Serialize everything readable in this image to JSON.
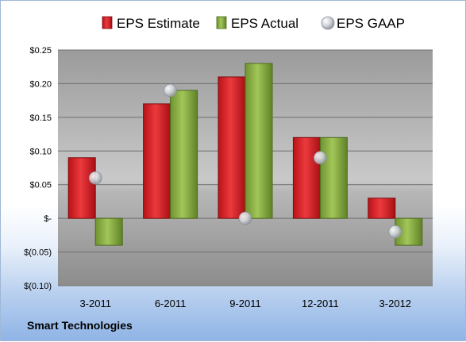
{
  "chart_data": {
    "type": "bar",
    "categories": [
      "3-2011",
      "6-2011",
      "9-2011",
      "12-2011",
      "3-2012"
    ],
    "series": [
      {
        "name": "EPS Estimate",
        "kind": "bar",
        "color": "#e0262b",
        "values": [
          0.09,
          0.17,
          0.21,
          0.12,
          0.03
        ]
      },
      {
        "name": "EPS Actual",
        "kind": "bar",
        "color": "#8db543",
        "values": [
          -0.04,
          0.19,
          0.23,
          0.12,
          -0.04
        ]
      },
      {
        "name": "EPS GAAP",
        "kind": "scatter",
        "color": "#c8ccd2",
        "values": [
          0.06,
          0.19,
          0.0,
          0.09,
          -0.02
        ]
      }
    ],
    "y_ticks": [
      {
        "value": 0.25,
        "label": "$0.25"
      },
      {
        "value": 0.2,
        "label": "$0.20"
      },
      {
        "value": 0.15,
        "label": "$0.15"
      },
      {
        "value": 0.1,
        "label": "$0.10"
      },
      {
        "value": 0.05,
        "label": "$0.05"
      },
      {
        "value": 0.0,
        "label": "$-"
      },
      {
        "value": -0.05,
        "label": "$(0.05)"
      },
      {
        "value": -0.1,
        "label": "$(0.10)"
      }
    ],
    "ylim": [
      -0.1,
      0.25
    ],
    "grid": true,
    "legend_position": "top"
  },
  "footer": {
    "company": "Smart Technologies"
  }
}
